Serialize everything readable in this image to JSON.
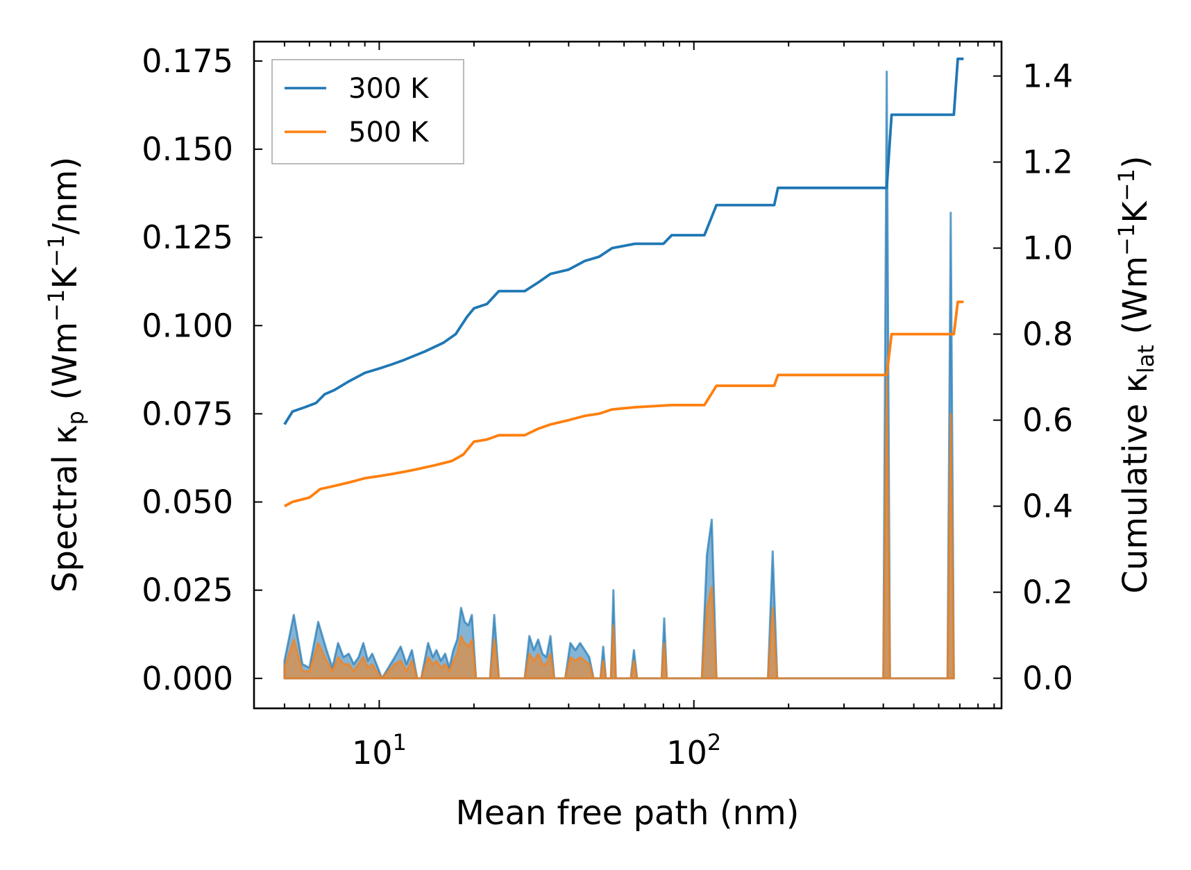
{
  "chart_data": {
    "type": "line",
    "title": "",
    "xlabel": "Mean free path (nm)",
    "xscale": "log",
    "xlim": [
      4.0,
      950
    ],
    "xticks": [
      {
        "value": 10,
        "base": "10",
        "exp": "1"
      },
      {
        "value": 100,
        "base": "10",
        "exp": "2"
      }
    ],
    "ylabel_left": {
      "pre": "Spectral κ",
      "sub": "p",
      "mid1": " (Wm",
      "sup1": "−1",
      "mid2": "K",
      "sup2": "−1",
      "post": "/nm)"
    },
    "ylabel_right": {
      "pre": "Cumulative κ",
      "sub": "lat",
      "mid1": " (Wm",
      "sup1": "−1",
      "mid2": "K",
      "sup2": "−1",
      "post": ")"
    },
    "ylim_left": [
      -0.0085,
      0.1805
    ],
    "ylim_right": [
      -0.07,
      1.48
    ],
    "yticks_left": [
      {
        "value": 0.0,
        "label": "0.000"
      },
      {
        "value": 0.025,
        "label": "0.025"
      },
      {
        "value": 0.05,
        "label": "0.050"
      },
      {
        "value": 0.075,
        "label": "0.075"
      },
      {
        "value": 0.1,
        "label": "0.100"
      },
      {
        "value": 0.125,
        "label": "0.125"
      },
      {
        "value": 0.15,
        "label": "0.150"
      },
      {
        "value": 0.175,
        "label": "0.175"
      }
    ],
    "yticks_right": [
      {
        "value": 0.0,
        "label": "0.0"
      },
      {
        "value": 0.2,
        "label": "0.2"
      },
      {
        "value": 0.4,
        "label": "0.4"
      },
      {
        "value": 0.6,
        "label": "0.6"
      },
      {
        "value": 0.8,
        "label": "0.8"
      },
      {
        "value": 1.0,
        "label": "1.0"
      },
      {
        "value": 1.2,
        "label": "1.2"
      },
      {
        "value": 1.4,
        "label": "1.4"
      }
    ],
    "legend": {
      "position": "top-left",
      "entries": [
        {
          "name": "300 K",
          "color": "#1f77b4"
        },
        {
          "name": "500 K",
          "color": "#ff7f0e"
        }
      ]
    },
    "cumulative_series": [
      {
        "name": "300 K",
        "axis": "right",
        "color": "#1f77b4",
        "points": [
          [
            5.0,
            0.59
          ],
          [
            5.3,
            0.62
          ],
          [
            5.8,
            0.63
          ],
          [
            6.3,
            0.64
          ],
          [
            6.7,
            0.66
          ],
          [
            7.2,
            0.67
          ],
          [
            8.0,
            0.69
          ],
          [
            9.0,
            0.71
          ],
          [
            10.0,
            0.72
          ],
          [
            11.0,
            0.73
          ],
          [
            12.0,
            0.74
          ],
          [
            14.0,
            0.76
          ],
          [
            16.0,
            0.78
          ],
          [
            17.5,
            0.8
          ],
          [
            19.0,
            0.84
          ],
          [
            20.0,
            0.86
          ],
          [
            22.0,
            0.87
          ],
          [
            24.0,
            0.9
          ],
          [
            29.0,
            0.9
          ],
          [
            32.0,
            0.92
          ],
          [
            35.0,
            0.94
          ],
          [
            40.0,
            0.95
          ],
          [
            45.0,
            0.97
          ],
          [
            50.0,
            0.98
          ],
          [
            55.0,
            1.0
          ],
          [
            65.0,
            1.01
          ],
          [
            80.0,
            1.01
          ],
          [
            85.0,
            1.03
          ],
          [
            108.0,
            1.03
          ],
          [
            118.0,
            1.1
          ],
          [
            180.0,
            1.1
          ],
          [
            185.0,
            1.14
          ],
          [
            410.0,
            1.14
          ],
          [
            425.0,
            1.31
          ],
          [
            670.0,
            1.31
          ],
          [
            690.0,
            1.44
          ],
          [
            720.0,
            1.44
          ]
        ]
      },
      {
        "name": "500 K",
        "axis": "right",
        "color": "#ff7f0e",
        "points": [
          [
            5.0,
            0.4
          ],
          [
            5.3,
            0.41
          ],
          [
            6.0,
            0.42
          ],
          [
            6.5,
            0.44
          ],
          [
            7.0,
            0.445
          ],
          [
            8.0,
            0.455
          ],
          [
            9.0,
            0.465
          ],
          [
            10.0,
            0.47
          ],
          [
            11.0,
            0.475
          ],
          [
            12.0,
            0.48
          ],
          [
            13.0,
            0.485
          ],
          [
            15.0,
            0.495
          ],
          [
            17.0,
            0.505
          ],
          [
            18.5,
            0.52
          ],
          [
            20.0,
            0.55
          ],
          [
            22.0,
            0.555
          ],
          [
            24.0,
            0.565
          ],
          [
            29.0,
            0.565
          ],
          [
            32.0,
            0.58
          ],
          [
            35.0,
            0.59
          ],
          [
            40.0,
            0.6
          ],
          [
            45.0,
            0.61
          ],
          [
            50.0,
            0.615
          ],
          [
            55.0,
            0.625
          ],
          [
            65.0,
            0.63
          ],
          [
            85.0,
            0.635
          ],
          [
            108.0,
            0.635
          ],
          [
            118.0,
            0.68
          ],
          [
            180.0,
            0.68
          ],
          [
            185.0,
            0.705
          ],
          [
            410.0,
            0.705
          ],
          [
            425.0,
            0.8
          ],
          [
            670.0,
            0.8
          ],
          [
            690.0,
            0.875
          ],
          [
            720.0,
            0.875
          ]
        ]
      }
    ],
    "spectral_series": [
      {
        "name": "300 K",
        "axis": "left",
        "color": "#1f77b4",
        "points": [
          [
            5.0,
            0.005
          ],
          [
            5.35,
            0.018
          ],
          [
            5.7,
            0.004
          ],
          [
            6.0,
            0.003
          ],
          [
            6.4,
            0.016
          ],
          [
            6.8,
            0.008
          ],
          [
            7.1,
            0.003
          ],
          [
            7.4,
            0.01
          ],
          [
            7.7,
            0.006
          ],
          [
            8.0,
            0.007
          ],
          [
            8.3,
            0.004
          ],
          [
            8.6,
            0.006
          ],
          [
            8.9,
            0.01
          ],
          [
            9.2,
            0.005
          ],
          [
            9.5,
            0.007
          ],
          [
            9.8,
            0.004
          ],
          [
            10.2,
            0.0
          ],
          [
            11.2,
            0.006
          ],
          [
            11.7,
            0.009
          ],
          [
            12.2,
            0.004
          ],
          [
            12.7,
            0.008
          ],
          [
            13.2,
            0.0
          ],
          [
            13.6,
            0.0
          ],
          [
            14.3,
            0.01
          ],
          [
            14.8,
            0.006
          ],
          [
            15.2,
            0.008
          ],
          [
            15.7,
            0.005
          ],
          [
            16.2,
            0.007
          ],
          [
            16.7,
            0.003
          ],
          [
            17.2,
            0.008
          ],
          [
            17.7,
            0.011
          ],
          [
            18.2,
            0.02
          ],
          [
            18.7,
            0.016
          ],
          [
            19.2,
            0.015
          ],
          [
            19.7,
            0.018
          ],
          [
            20.3,
            0.0
          ],
          [
            22.5,
            0.0
          ],
          [
            23.2,
            0.018
          ],
          [
            24.0,
            0.0
          ],
          [
            29.0,
            0.0
          ],
          [
            30.0,
            0.012
          ],
          [
            31.0,
            0.008
          ],
          [
            32.0,
            0.011
          ],
          [
            33.0,
            0.007
          ],
          [
            34.0,
            0.006
          ],
          [
            35.0,
            0.012
          ],
          [
            36.0,
            0.0
          ],
          [
            39.0,
            0.0
          ],
          [
            40.5,
            0.01
          ],
          [
            42.0,
            0.008
          ],
          [
            43.5,
            0.01
          ],
          [
            45.0,
            0.008
          ],
          [
            46.5,
            0.006
          ],
          [
            48.0,
            0.0
          ],
          [
            50.5,
            0.0
          ],
          [
            51.5,
            0.009
          ],
          [
            52.5,
            0.0
          ],
          [
            54.5,
            0.0
          ],
          [
            55.5,
            0.025
          ],
          [
            56.5,
            0.0
          ],
          [
            63.0,
            0.0
          ],
          [
            64.5,
            0.008
          ],
          [
            66.0,
            0.0
          ],
          [
            79.0,
            0.0
          ],
          [
            80.5,
            0.017
          ],
          [
            82.0,
            0.0
          ],
          [
            106.0,
            0.0
          ],
          [
            110.0,
            0.035
          ],
          [
            114.0,
            0.045
          ],
          [
            118.0,
            0.0
          ],
          [
            172.0,
            0.0
          ],
          [
            178.0,
            0.036
          ],
          [
            184.0,
            0.0
          ],
          [
            400.0,
            0.0
          ],
          [
            410.0,
            0.172
          ],
          [
            420.0,
            0.0
          ],
          [
            640.0,
            0.0
          ],
          [
            655.0,
            0.132
          ],
          [
            670.0,
            0.0
          ]
        ]
      },
      {
        "name": "500 K",
        "axis": "left",
        "color": "#ff7f0e",
        "points": [
          [
            5.0,
            0.003
          ],
          [
            5.35,
            0.011
          ],
          [
            5.7,
            0.002
          ],
          [
            6.0,
            0.002
          ],
          [
            6.4,
            0.01
          ],
          [
            6.8,
            0.005
          ],
          [
            7.1,
            0.002
          ],
          [
            7.4,
            0.006
          ],
          [
            7.7,
            0.004
          ],
          [
            8.0,
            0.004
          ],
          [
            8.3,
            0.002
          ],
          [
            8.6,
            0.004
          ],
          [
            8.9,
            0.006
          ],
          [
            9.2,
            0.003
          ],
          [
            9.5,
            0.004
          ],
          [
            9.8,
            0.002
          ],
          [
            10.2,
            0.0
          ],
          [
            11.2,
            0.004
          ],
          [
            11.7,
            0.005
          ],
          [
            12.2,
            0.002
          ],
          [
            12.7,
            0.005
          ],
          [
            13.2,
            0.0
          ],
          [
            13.6,
            0.0
          ],
          [
            14.3,
            0.006
          ],
          [
            14.8,
            0.004
          ],
          [
            15.2,
            0.005
          ],
          [
            15.7,
            0.003
          ],
          [
            16.2,
            0.004
          ],
          [
            16.7,
            0.002
          ],
          [
            17.2,
            0.005
          ],
          [
            17.7,
            0.007
          ],
          [
            18.2,
            0.012
          ],
          [
            18.7,
            0.01
          ],
          [
            19.2,
            0.009
          ],
          [
            19.7,
            0.011
          ],
          [
            20.3,
            0.0
          ],
          [
            22.5,
            0.0
          ],
          [
            23.2,
            0.011
          ],
          [
            24.0,
            0.0
          ],
          [
            29.0,
            0.0
          ],
          [
            30.0,
            0.007
          ],
          [
            31.0,
            0.005
          ],
          [
            32.0,
            0.007
          ],
          [
            33.0,
            0.004
          ],
          [
            34.0,
            0.004
          ],
          [
            35.0,
            0.007
          ],
          [
            36.0,
            0.0
          ],
          [
            39.0,
            0.0
          ],
          [
            40.5,
            0.006
          ],
          [
            42.0,
            0.005
          ],
          [
            43.5,
            0.006
          ],
          [
            45.0,
            0.005
          ],
          [
            46.5,
            0.004
          ],
          [
            48.0,
            0.0
          ],
          [
            50.5,
            0.0
          ],
          [
            51.5,
            0.005
          ],
          [
            52.5,
            0.0
          ],
          [
            54.5,
            0.0
          ],
          [
            55.5,
            0.015
          ],
          [
            56.5,
            0.0
          ],
          [
            63.0,
            0.0
          ],
          [
            64.5,
            0.005
          ],
          [
            66.0,
            0.0
          ],
          [
            79.0,
            0.0
          ],
          [
            80.5,
            0.01
          ],
          [
            82.0,
            0.0
          ],
          [
            106.0,
            0.0
          ],
          [
            110.0,
            0.02
          ],
          [
            114.0,
            0.026
          ],
          [
            118.0,
            0.0
          ],
          [
            172.0,
            0.0
          ],
          [
            178.0,
            0.02
          ],
          [
            184.0,
            0.0
          ],
          [
            400.0,
            0.0
          ],
          [
            410.0,
            0.085
          ],
          [
            420.0,
            0.0
          ],
          [
            640.0,
            0.0
          ],
          [
            655.0,
            0.075
          ],
          [
            670.0,
            0.0
          ]
        ]
      }
    ]
  }
}
